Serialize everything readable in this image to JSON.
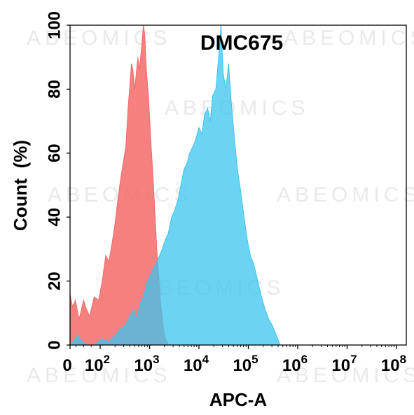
{
  "watermark": "ABEOMICS",
  "chart_data": {
    "type": "area",
    "title": "DMC675",
    "xlabel": "APC-A",
    "ylabel": "Count  (%)",
    "xscale": "biexponential",
    "xlim": [
      0,
      100000000
    ],
    "ylim": [
      0,
      100
    ],
    "x_ticks": [
      {
        "value": 0,
        "base": "0",
        "exp": ""
      },
      {
        "value": 100,
        "base": "10",
        "exp": "2"
      },
      {
        "value": 1000,
        "base": "10",
        "exp": "3"
      },
      {
        "value": 10000,
        "base": "10",
        "exp": "4"
      },
      {
        "value": 100000,
        "base": "10",
        "exp": "5"
      },
      {
        "value": 1000000,
        "base": "10",
        "exp": "6"
      },
      {
        "value": 10000000,
        "base": "10",
        "exp": "7"
      },
      {
        "value": 100000000,
        "base": "10",
        "exp": "8"
      }
    ],
    "y_ticks": [
      0,
      20,
      40,
      60,
      80,
      100
    ],
    "grid": false,
    "legend": "none",
    "series": [
      {
        "color": "#f26a6a",
        "opacity": 0.85,
        "points": [
          [
            0,
            16
          ],
          [
            8,
            12
          ],
          [
            18,
            14
          ],
          [
            30,
            8
          ],
          [
            45,
            14
          ],
          [
            55,
            11
          ],
          [
            65,
            9
          ],
          [
            80,
            15
          ],
          [
            95,
            14
          ],
          [
            110,
            20
          ],
          [
            130,
            28
          ],
          [
            150,
            26
          ],
          [
            175,
            32
          ],
          [
            200,
            38
          ],
          [
            230,
            46
          ],
          [
            260,
            52
          ],
          [
            300,
            58
          ],
          [
            330,
            62
          ],
          [
            370,
            75
          ],
          [
            400,
            81
          ],
          [
            430,
            88
          ],
          [
            460,
            86
          ],
          [
            500,
            80
          ],
          [
            540,
            85
          ],
          [
            580,
            90
          ],
          [
            620,
            86
          ],
          [
            680,
            92
          ],
          [
            750,
            100
          ],
          [
            800,
            97
          ],
          [
            870,
            85
          ],
          [
            950,
            78
          ],
          [
            1050,
            65
          ],
          [
            1200,
            50
          ],
          [
            1400,
            30
          ],
          [
            1700,
            12
          ],
          [
            2000,
            3
          ],
          [
            2400,
            0
          ]
        ]
      },
      {
        "color": "#3cc4ef",
        "opacity": 0.75,
        "points": [
          [
            0,
            0
          ],
          [
            10,
            1
          ],
          [
            25,
            3
          ],
          [
            40,
            1
          ],
          [
            60,
            0
          ],
          [
            80,
            0
          ],
          [
            110,
            2
          ],
          [
            150,
            1
          ],
          [
            200,
            3
          ],
          [
            260,
            5
          ],
          [
            320,
            6
          ],
          [
            400,
            9
          ],
          [
            480,
            11
          ],
          [
            550,
            8
          ],
          [
            650,
            13
          ],
          [
            750,
            15
          ],
          [
            900,
            20
          ],
          [
            1050,
            22
          ],
          [
            1200,
            24
          ],
          [
            1400,
            26
          ],
          [
            1600,
            28
          ],
          [
            1800,
            30
          ],
          [
            2100,
            33
          ],
          [
            2400,
            35
          ],
          [
            2800,
            40
          ],
          [
            3200,
            42
          ],
          [
            3700,
            45
          ],
          [
            4300,
            50
          ],
          [
            5000,
            55
          ],
          [
            5800,
            57
          ],
          [
            6500,
            60
          ],
          [
            7500,
            62
          ],
          [
            8500,
            64
          ],
          [
            10000,
            68
          ],
          [
            11500,
            66
          ],
          [
            13000,
            72
          ],
          [
            15000,
            74
          ],
          [
            17000,
            70
          ],
          [
            19000,
            78
          ],
          [
            22000,
            80
          ],
          [
            25000,
            90
          ],
          [
            28000,
            100
          ],
          [
            31000,
            85
          ],
          [
            35000,
            80
          ],
          [
            40000,
            88
          ],
          [
            45000,
            76
          ],
          [
            52000,
            65
          ],
          [
            60000,
            55
          ],
          [
            70000,
            48
          ],
          [
            82000,
            40
          ],
          [
            95000,
            33
          ],
          [
            110000,
            28
          ],
          [
            130000,
            25
          ],
          [
            155000,
            20
          ],
          [
            185000,
            15
          ],
          [
            220000,
            11
          ],
          [
            260000,
            8
          ],
          [
            310000,
            6
          ],
          [
            370000,
            3
          ],
          [
            440000,
            0
          ]
        ]
      }
    ]
  }
}
